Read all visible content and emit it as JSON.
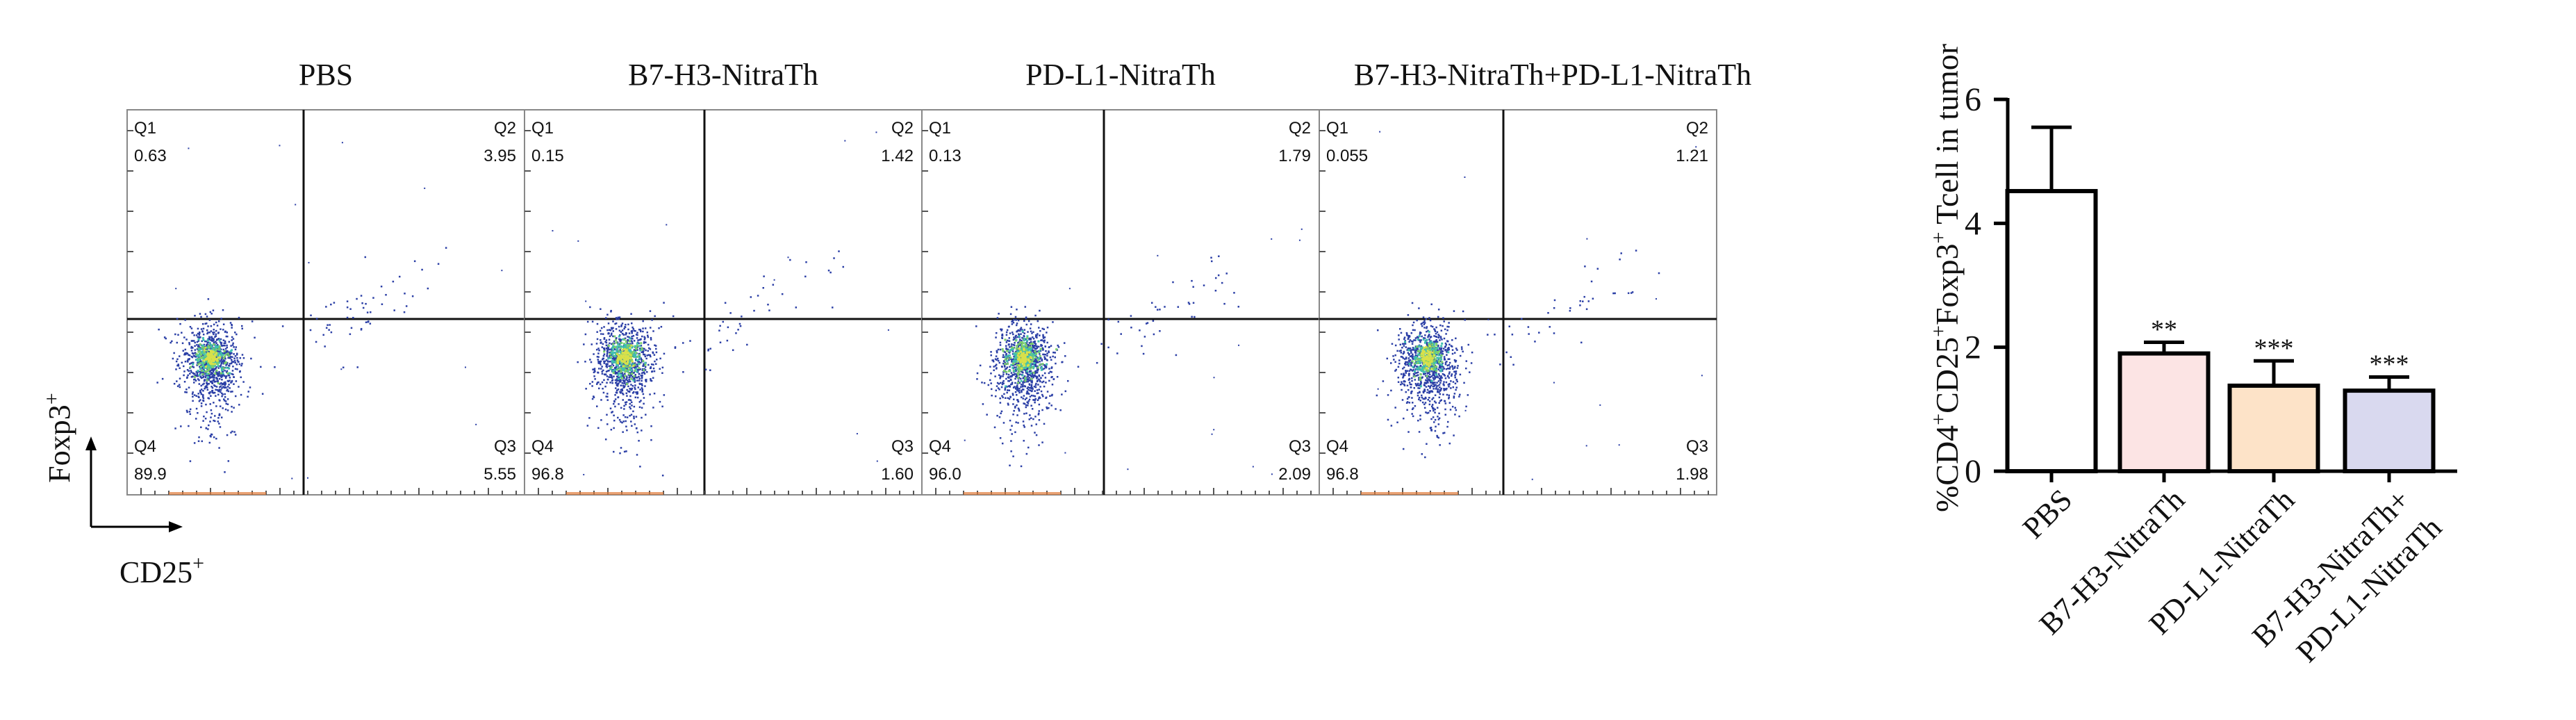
{
  "figure": {
    "flow": {
      "y_axis_label": "Foxp3",
      "y_axis_sup": "+",
      "x_axis_label": "CD25",
      "x_axis_sup": "+",
      "panels": [
        {
          "title": "PBS",
          "quadrants": [
            {
              "name": "Q1",
              "value": "0.63"
            },
            {
              "name": "Q2",
              "value": "3.95"
            },
            {
              "name": "Q4",
              "value": "89.9"
            },
            {
              "name": "Q3",
              "value": "5.55"
            }
          ]
        },
        {
          "title": "B7-H3-NitraTh",
          "quadrants": [
            {
              "name": "Q1",
              "value": "0.15"
            },
            {
              "name": "Q2",
              "value": "1.42"
            },
            {
              "name": "Q4",
              "value": "96.8"
            },
            {
              "name": "Q3",
              "value": "1.60"
            }
          ]
        },
        {
          "title": "PD-L1-NitraTh",
          "quadrants": [
            {
              "name": "Q1",
              "value": "0.13"
            },
            {
              "name": "Q2",
              "value": "1.79"
            },
            {
              "name": "Q4",
              "value": "96.0"
            },
            {
              "name": "Q3",
              "value": "2.09"
            }
          ]
        },
        {
          "title": "B7-H3-NitraTh+PD-L1-NitraTh",
          "quadrants": [
            {
              "name": "Q1",
              "value": "0.055"
            },
            {
              "name": "Q2",
              "value": "1.21"
            },
            {
              "name": "Q4",
              "value": "96.8"
            },
            {
              "name": "Q3",
              "value": "1.98"
            }
          ]
        }
      ]
    }
  },
  "chart_data": {
    "type": "bar",
    "ylabel_parts": [
      "%CD4",
      "+",
      "CD25",
      "+",
      "Foxp3",
      "+",
      " Tcell in tumor"
    ],
    "ylim": [
      0,
      6
    ],
    "yticks": [
      "0",
      "2",
      "4",
      "6"
    ],
    "categories": [
      [
        "PBS"
      ],
      [
        "B7-H3-NitraTh"
      ],
      [
        "PD-L1-NitraTh"
      ],
      [
        "B7-H3-NitraTh+",
        "PD-L1-NitraTh"
      ]
    ],
    "values": [
      4.52,
      1.9,
      1.38,
      1.3
    ],
    "error_upper": [
      5.55,
      2.08,
      1.78,
      1.52
    ],
    "significance": [
      "",
      "**",
      "***",
      "***"
    ],
    "bar_fill_colors": [
      "#ffffff",
      "#fce4e4",
      "#fde3c8",
      "#d9d9ef"
    ],
    "bar_edge_color": "#000000",
    "grid": false,
    "legend": "none"
  }
}
